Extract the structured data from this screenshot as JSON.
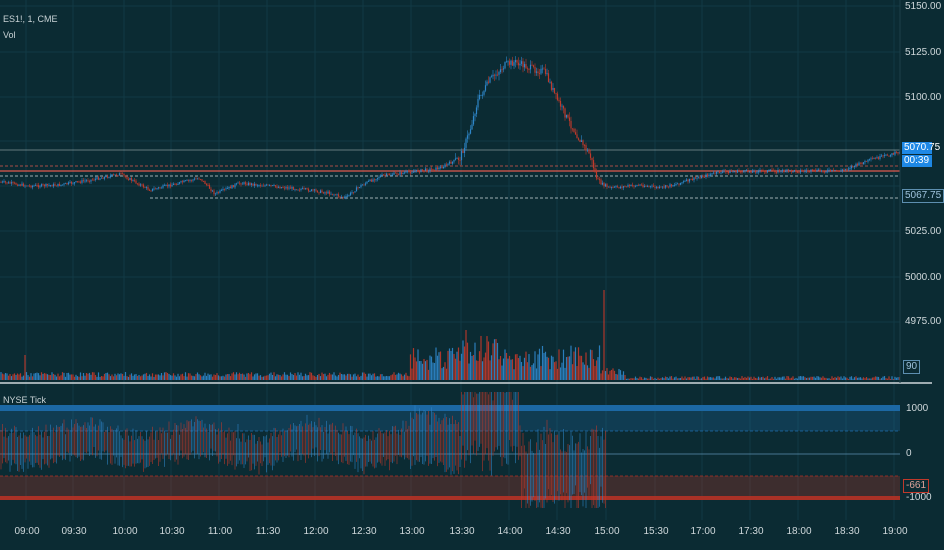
{
  "header": {
    "symbol": "ES1!, 1, CME",
    "volume_label": "Vol",
    "subpanel_label": "NYSE Tick"
  },
  "price_axis": {
    "ticks": [
      "5150.00",
      "5125.00",
      "5100.00",
      "5025.00",
      "5000.00",
      "4975.00"
    ],
    "last_price": "5070.75",
    "countdown": "00:39",
    "low_marker": "5067.75",
    "volume_tag": "90"
  },
  "tick_axis": {
    "ticks": [
      "1000",
      "0",
      "-1000"
    ],
    "last_value": "-661"
  },
  "time_axis": {
    "labels": [
      "09:00",
      "09:30",
      "10:00",
      "10:30",
      "11:00",
      "11:30",
      "12:00",
      "12:30",
      "13:00",
      "13:30",
      "14:00",
      "14:30",
      "15:00",
      "15:30",
      "17:00",
      "17:30",
      "18:00",
      "18:30",
      "19:00"
    ]
  },
  "colors": {
    "background": "#0b2b33",
    "up": "#2e86c9",
    "down": "#c0392b",
    "level_red": "#e05a4f",
    "level_white": "#d0d8db",
    "band_blue": "#1e6fb0",
    "band_red": "#b23226"
  }
}
